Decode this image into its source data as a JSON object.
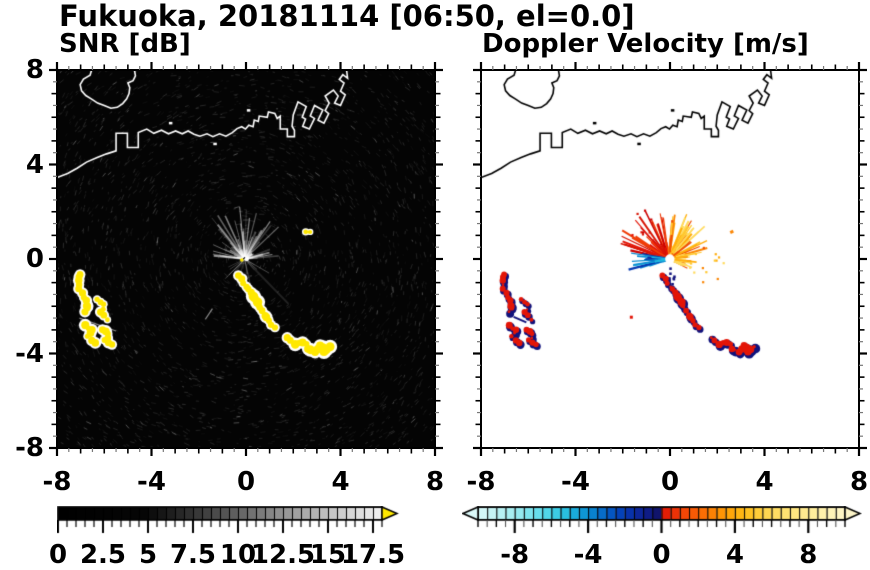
{
  "header": {
    "title": "Fukuoka, 20181114 [06:50, el=0.0]",
    "station": "Fukuoka",
    "date": "20181114",
    "time": "06:50",
    "elevation": "el=0.0"
  },
  "axes": {
    "xlim": [
      -8,
      8
    ],
    "ylim": [
      -8,
      8
    ],
    "xtick_values": [
      -8,
      -4,
      0,
      4,
      8
    ],
    "xtick_labels": [
      "-8",
      "-4",
      "0",
      "4",
      "8"
    ],
    "ytick_values": [
      8,
      4,
      0,
      -4,
      -8
    ],
    "ytick_labels": [
      "8",
      "4",
      "0",
      "-4",
      "-8"
    ],
    "unit_tick_step": 1,
    "minor_tick_step": 0.5
  },
  "chart_data": [
    {
      "type": "heatmap",
      "id": "snr",
      "title": "SNR [dB]",
      "xlim": [
        -8,
        8
      ],
      "ylim": [
        -8,
        8
      ],
      "background": "#040404",
      "coast_color": "#ffffff",
      "description": "Radar PPI of signal-to-noise ratio; dark speckle over sea, gray clutter spokes radiating from radar site at origin, strong (yellow, >18 dB) echo arcs southwest and an echo chain running southeast from the radar.",
      "echo_color": "#ffe800",
      "halo_color": "#ffffff",
      "colorbar": {
        "min": 0,
        "max": 18,
        "tick_values": [
          0,
          2.5,
          5,
          7.5,
          10,
          12.5,
          15,
          17.5
        ],
        "tick_labels": [
          "0",
          "2.5",
          "5",
          "7.5",
          "10",
          "12.5",
          "15",
          "17.5"
        ],
        "over_arrow_color": "#ffe800",
        "stops": [
          [
            0,
            "#000000"
          ],
          [
            4.8,
            "#060606"
          ],
          [
            8,
            "#3c3c3c"
          ],
          [
            12,
            "#8a8a8a"
          ],
          [
            15,
            "#c2c2c2"
          ],
          [
            18,
            "#f2f2f2"
          ]
        ]
      }
    },
    {
      "type": "heatmap",
      "id": "velocity",
      "title": "Doppler Velocity [m/s]",
      "xlim": [
        -8,
        8
      ],
      "ylim": [
        -8,
        8
      ],
      "background": "#ffffff",
      "coast_color": "#000000",
      "description": "Radar PPI of Doppler velocity; white background, fan of positive (red/orange/yellow) velocities around radar site, negative (blue) streak west of site, echo chain and southwest arcs shown red with navy edges.",
      "positive_colors": [
        "#d81505",
        "#f05005",
        "#fb8604",
        "#ffae0c",
        "#ffc82e",
        "#ffdb5c"
      ],
      "negative_colors": [
        "#0b2ba2",
        "#0538b2",
        "#0a8cd2",
        "#1fb8de"
      ],
      "navy": "#10127c",
      "red": "#e31507",
      "colorbar": {
        "min": -10,
        "max": 10,
        "tick_values": [
          -8,
          -4,
          0,
          4,
          8
        ],
        "tick_labels": [
          "-8",
          "-4",
          "0",
          "4",
          "8"
        ],
        "under_arrow_color": "#daf8f8",
        "over_arrow_color": "#fcf4c8",
        "stops": [
          [
            -10,
            "#daf8f8"
          ],
          [
            -9,
            "#bff2f4"
          ],
          [
            -8,
            "#9fecf0"
          ],
          [
            -7,
            "#72e0ec"
          ],
          [
            -6,
            "#46d2e6"
          ],
          [
            -5,
            "#1fb8de"
          ],
          [
            -4.5,
            "#12a0d8"
          ],
          [
            -4,
            "#0a8cd2"
          ],
          [
            -3.5,
            "#0878cc"
          ],
          [
            -3,
            "#0560c6"
          ],
          [
            -2.5,
            "#034bbe"
          ],
          [
            -2,
            "#0538b2"
          ],
          [
            -1.5,
            "#0b2ba2"
          ],
          [
            -1,
            "#0e2090"
          ],
          [
            -0.5,
            "#10187c"
          ],
          [
            -0.05,
            "#101060"
          ],
          [
            0.05,
            "#dd1505"
          ],
          [
            0.5,
            "#e82808"
          ],
          [
            1,
            "#f03c06"
          ],
          [
            1.5,
            "#f55005"
          ],
          [
            2,
            "#f96404"
          ],
          [
            2.5,
            "#fb7804"
          ],
          [
            3,
            "#fd8c04"
          ],
          [
            3.5,
            "#fe9e06"
          ],
          [
            4,
            "#ffae0c"
          ],
          [
            4.5,
            "#ffbc18"
          ],
          [
            5,
            "#ffc82e"
          ],
          [
            5.5,
            "#ffd245"
          ],
          [
            6,
            "#ffdb5c"
          ],
          [
            7,
            "#ffe478"
          ],
          [
            8,
            "#ffec96"
          ],
          [
            9,
            "#fff2b2"
          ],
          [
            10,
            "#fcf4c8"
          ]
        ]
      }
    }
  ],
  "geo": {
    "radar_center": [
      -0.05,
      0.0
    ],
    "mainland": [
      [
        -8,
        3.45
      ],
      [
        -7.55,
        3.62
      ],
      [
        -7.15,
        3.84
      ],
      [
        -6.75,
        4.1
      ],
      [
        -6.3,
        4.3
      ],
      [
        -5.9,
        4.45
      ],
      [
        -5.5,
        4.58
      ],
      [
        -5.5,
        5.32
      ],
      [
        -5.02,
        5.32
      ],
      [
        -5.02,
        4.72
      ],
      [
        -4.56,
        4.72
      ],
      [
        -4.56,
        5.35
      ],
      [
        -4.2,
        5.5
      ],
      [
        -3.9,
        5.32
      ],
      [
        -3.58,
        5.45
      ],
      [
        -3.28,
        5.3
      ],
      [
        -2.98,
        5.42
      ],
      [
        -2.7,
        5.3
      ],
      [
        -2.45,
        5.42
      ],
      [
        -2.2,
        5.28
      ],
      [
        -1.95,
        5.2
      ],
      [
        -1.65,
        5.3
      ],
      [
        -1.4,
        5.18
      ],
      [
        -1.12,
        5.3
      ],
      [
        -0.85,
        5.2
      ],
      [
        -0.58,
        5.35
      ],
      [
        -0.38,
        5.52
      ],
      [
        -0.18,
        5.6
      ],
      [
        -0.02,
        5.5
      ],
      [
        0.12,
        5.66
      ],
      [
        0.3,
        5.6
      ],
      [
        0.35,
        5.88
      ],
      [
        0.52,
        5.82
      ],
      [
        0.56,
        6.05
      ],
      [
        0.9,
        6.0
      ],
      [
        0.95,
        6.22
      ],
      [
        1.22,
        6.16
      ],
      [
        1.32,
        5.95
      ],
      [
        1.45,
        6.05
      ],
      [
        1.45,
        5.5
      ],
      [
        1.75,
        5.5
      ],
      [
        1.75,
        5.18
      ],
      [
        2.05,
        5.18
      ],
      [
        2.05,
        5.45
      ],
      [
        1.95,
        5.62
      ],
      [
        2.0,
        6.1
      ],
      [
        2.2,
        6.65
      ],
      [
        2.55,
        6.45
      ],
      [
        2.38,
        6.0
      ],
      [
        2.52,
        5.92
      ],
      [
        2.4,
        5.62
      ],
      [
        2.68,
        5.5
      ],
      [
        2.9,
        5.95
      ],
      [
        2.72,
        6.06
      ],
      [
        2.9,
        6.5
      ],
      [
        3.25,
        6.3
      ],
      [
        3.05,
        5.88
      ],
      [
        3.3,
        5.75
      ],
      [
        3.5,
        6.15
      ],
      [
        3.35,
        6.28
      ],
      [
        3.52,
        6.6
      ],
      [
        3.35,
        6.9
      ],
      [
        3.7,
        7.15
      ],
      [
        3.9,
        6.9
      ],
      [
        3.75,
        6.6
      ],
      [
        4.0,
        6.5
      ],
      [
        4.2,
        6.95
      ],
      [
        4.0,
        7.1
      ],
      [
        4.15,
        7.45
      ],
      [
        3.95,
        7.6
      ],
      [
        4.1,
        7.8
      ],
      [
        4.3,
        7.65
      ],
      [
        4.25,
        8.05
      ]
    ],
    "island": [
      [
        -6.52,
        8.05
      ],
      [
        -6.6,
        7.78
      ],
      [
        -6.88,
        7.62
      ],
      [
        -7.02,
        7.38
      ],
      [
        -6.96,
        7.12
      ],
      [
        -6.78,
        6.92
      ],
      [
        -6.55,
        6.78
      ],
      [
        -6.28,
        6.6
      ],
      [
        -6.0,
        6.5
      ],
      [
        -5.72,
        6.38
      ],
      [
        -5.45,
        6.42
      ],
      [
        -5.22,
        6.58
      ],
      [
        -5.05,
        6.78
      ],
      [
        -4.95,
        7.0
      ],
      [
        -4.92,
        7.25
      ],
      [
        -5.0,
        7.45
      ],
      [
        -4.78,
        7.55
      ],
      [
        -4.68,
        7.75
      ],
      [
        -4.73,
        8.05
      ]
    ],
    "islets": [
      [
        0.1,
        6.28
      ],
      [
        -3.2,
        5.74
      ],
      [
        -1.32,
        4.86
      ]
    ]
  },
  "echoes": {
    "cluster_paths": [
      {
        "w": 0.14,
        "pts": [
          [
            -7.0,
            -0.62
          ],
          [
            -7.12,
            -0.95
          ],
          [
            -7.05,
            -1.3
          ],
          [
            -6.85,
            -1.62
          ],
          [
            -6.72,
            -1.95
          ],
          [
            -6.78,
            -2.2
          ]
        ]
      },
      {
        "w": 0.13,
        "pts": [
          [
            -6.28,
            -1.68
          ],
          [
            -6.02,
            -1.95
          ],
          [
            -6.12,
            -2.28
          ],
          [
            -5.88,
            -2.55
          ]
        ]
      },
      {
        "w": 0.14,
        "pts": [
          [
            -6.78,
            -2.78
          ],
          [
            -6.55,
            -3.02
          ],
          [
            -6.68,
            -3.3
          ],
          [
            -6.42,
            -3.52
          ]
        ]
      },
      {
        "w": 0.14,
        "pts": [
          [
            -6.05,
            -2.98
          ],
          [
            -5.82,
            -3.18
          ],
          [
            -5.95,
            -3.45
          ],
          [
            -5.65,
            -3.58
          ]
        ]
      }
    ],
    "chain_path": {
      "w": 0.16,
      "pts": [
        [
          -0.3,
          -0.72
        ],
        [
          -0.12,
          -1.0
        ],
        [
          0.1,
          -1.28
        ],
        [
          0.28,
          -1.55
        ],
        [
          0.48,
          -1.82
        ],
        [
          0.6,
          -2.08
        ],
        [
          0.78,
          -2.38
        ],
        [
          0.98,
          -2.62
        ],
        [
          1.2,
          -2.88
        ],
        [
          1.75,
          -3.3
        ],
        [
          2.1,
          -3.62
        ],
        [
          2.42,
          -3.5
        ],
        [
          2.62,
          -3.78
        ],
        [
          2.9,
          -3.92
        ],
        [
          3.1,
          -3.62
        ],
        [
          3.32,
          -3.88
        ],
        [
          3.55,
          -3.72
        ]
      ]
    },
    "small_dash": {
      "w": 0.08,
      "pts": [
        [
          2.55,
          1.12
        ],
        [
          2.68,
          1.18
        ]
      ]
    },
    "snr_streaks": [
      {
        "from": [
          -7.05,
          -2.5
        ],
        "to": [
          -5.5,
          -3.05
        ]
      },
      {
        "from": [
          -1.72,
          -2.55
        ],
        "to": [
          -1.42,
          -2.1
        ]
      }
    ],
    "vel_navy_dash": {
      "from": [
        -6.62,
        -2.45
      ],
      "to": [
        -6.08,
        -2.68
      ]
    },
    "vel_red_dot": [
      -1.7,
      -2.4
    ]
  }
}
